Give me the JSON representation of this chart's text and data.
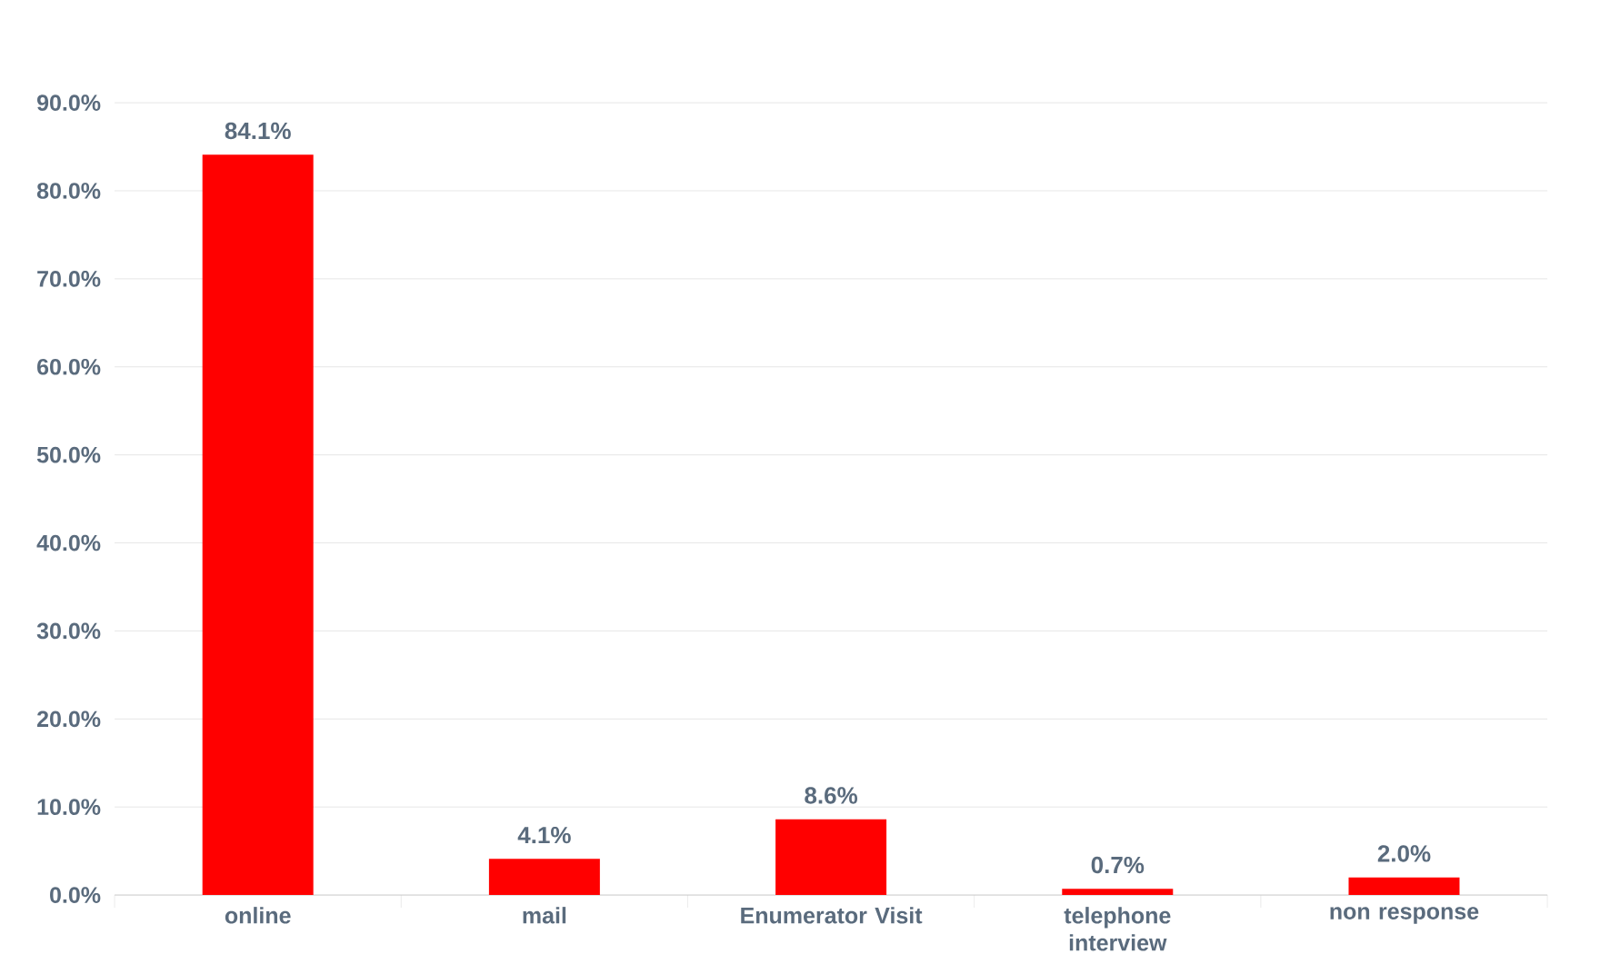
{
  "chart_data": {
    "type": "bar",
    "categories": [
      "online",
      "mail",
      "Enumerator Visit",
      "telephone interview",
      "non response"
    ],
    "values": [
      84.1,
      4.1,
      8.6,
      0.7,
      2.0
    ],
    "value_labels": [
      "84.1%",
      "4.1%",
      "8.6%",
      "0.7%",
      "2.0%"
    ],
    "color": "#ff0000",
    "ylim": [
      0,
      90
    ],
    "yticks": [
      {
        "value": 0,
        "label": "0.0%"
      },
      {
        "value": 10,
        "label": "10.0%"
      },
      {
        "value": 20,
        "label": "20.0%"
      },
      {
        "value": 30,
        "label": "30.0%"
      },
      {
        "value": 40,
        "label": "40.0%"
      },
      {
        "value": 50,
        "label": "50.0%"
      },
      {
        "value": 60,
        "label": "60.0%"
      },
      {
        "value": 70,
        "label": "70.0%"
      },
      {
        "value": 80,
        "label": "80.0%"
      },
      {
        "value": 90,
        "label": "90.0%"
      }
    ],
    "grid": "y"
  }
}
